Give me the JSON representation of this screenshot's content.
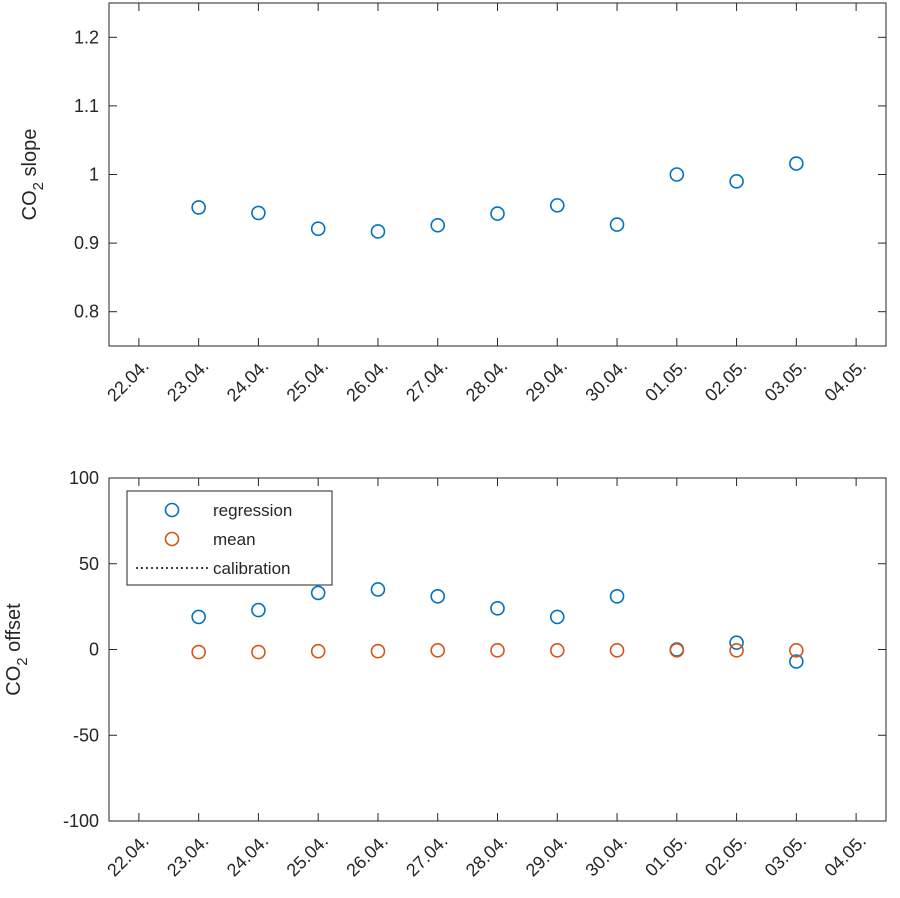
{
  "chart_data": [
    {
      "type": "scatter",
      "title": "",
      "xlabel": "",
      "ylabel": {
        "prefix": "CO",
        "subscript": "2",
        "suffix": " slope"
      },
      "ylim": [
        0.75,
        1.25
      ],
      "yticks": [
        0.8,
        0.9,
        1,
        1.1,
        1.2
      ],
      "ytick_labels": [
        "0.8",
        "0.9",
        "1",
        "1.1",
        "1.2"
      ],
      "xticks": [
        "22.04.",
        "23.04.",
        "24.04.",
        "25.04.",
        "26.04.",
        "27.04.",
        "28.04.",
        "29.04.",
        "30.04.",
        "01.05.",
        "02.05.",
        "03.05.",
        "04.05."
      ],
      "grid": false,
      "series": [
        {
          "color": "#0072BD",
          "marker": "open-circle",
          "points": [
            {
              "x": "23.04.",
              "y": 0.952
            },
            {
              "x": "24.04.",
              "y": 0.944
            },
            {
              "x": "25.04.",
              "y": 0.921
            },
            {
              "x": "26.04.",
              "y": 0.917
            },
            {
              "x": "27.04.",
              "y": 0.926
            },
            {
              "x": "28.04.",
              "y": 0.943
            },
            {
              "x": "29.04.",
              "y": 0.955
            },
            {
              "x": "30.04.",
              "y": 0.927
            },
            {
              "x": "01.05.",
              "y": 1.0
            },
            {
              "x": "02.05.",
              "y": 0.99
            },
            {
              "x": "03.05.",
              "y": 1.016
            }
          ]
        }
      ]
    },
    {
      "type": "scatter",
      "title": "",
      "xlabel": "",
      "ylabel": {
        "prefix": "CO",
        "subscript": "2",
        "suffix": " offset"
      },
      "ylim": [
        -100,
        100
      ],
      "yticks": [
        -100,
        -50,
        0,
        50,
        100
      ],
      "ytick_labels": [
        "-100",
        "-50",
        "0",
        "50",
        "100"
      ],
      "xticks": [
        "22.04.",
        "23.04.",
        "24.04.",
        "25.04.",
        "26.04.",
        "27.04.",
        "28.04.",
        "29.04.",
        "30.04.",
        "01.05.",
        "02.05.",
        "03.05.",
        "04.05."
      ],
      "grid": false,
      "legend": {
        "position": "top-left",
        "entries": [
          {
            "label": "regression",
            "marker": "open-circle",
            "color": "#0072BD"
          },
          {
            "label": "mean",
            "marker": "open-circle",
            "color": "#D95319"
          },
          {
            "label": "calibration",
            "marker": "dotted-line",
            "color": "#000000"
          }
        ]
      },
      "series": [
        {
          "name": "regression",
          "color": "#0072BD",
          "marker": "open-circle",
          "points": [
            {
              "x": "23.04.",
              "y": 19
            },
            {
              "x": "24.04.",
              "y": 23
            },
            {
              "x": "25.04.",
              "y": 33
            },
            {
              "x": "26.04.",
              "y": 35
            },
            {
              "x": "27.04.",
              "y": 31
            },
            {
              "x": "28.04.",
              "y": 24
            },
            {
              "x": "29.04.",
              "y": 19
            },
            {
              "x": "30.04.",
              "y": 31
            },
            {
              "x": "01.05.",
              "y": 0
            },
            {
              "x": "02.05.",
              "y": 4
            },
            {
              "x": "03.05.",
              "y": -7
            }
          ]
        },
        {
          "name": "mean",
          "color": "#D95319",
          "marker": "open-circle",
          "points": [
            {
              "x": "23.04.",
              "y": -1.5
            },
            {
              "x": "24.04.",
              "y": -1.5
            },
            {
              "x": "25.04.",
              "y": -1
            },
            {
              "x": "26.04.",
              "y": -1
            },
            {
              "x": "27.04.",
              "y": -0.5
            },
            {
              "x": "28.04.",
              "y": -0.5
            },
            {
              "x": "29.04.",
              "y": -0.5
            },
            {
              "x": "30.04.",
              "y": -0.5
            },
            {
              "x": "01.05.",
              "y": -0.5
            },
            {
              "x": "02.05.",
              "y": -0.5
            },
            {
              "x": "03.05.",
              "y": -0.5
            }
          ]
        },
        {
          "name": "calibration",
          "color": "#000000",
          "marker": "dotted-line",
          "points": []
        }
      ]
    }
  ]
}
